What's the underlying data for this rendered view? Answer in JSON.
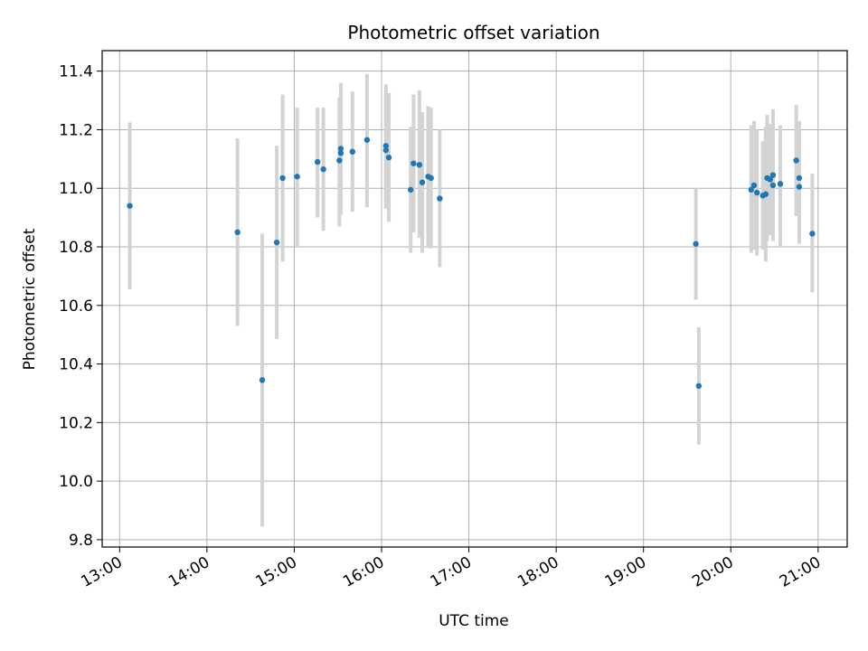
{
  "chart_data": {
    "type": "scatter",
    "title": "Photometric offset variation",
    "xlabel": "UTC time",
    "ylabel": "Photometric offset",
    "xlim": [
      "12:48",
      "21:20"
    ],
    "ylim": [
      9.775,
      11.47
    ],
    "grid": true,
    "xticks": [
      "13:00",
      "14:00",
      "15:00",
      "16:00",
      "17:00",
      "18:00",
      "19:00",
      "20:00",
      "21:00"
    ],
    "yticks": [
      9.8,
      10.0,
      10.2,
      10.4,
      10.6,
      10.8,
      11.0,
      11.2,
      11.4
    ],
    "yticklabels": [
      "9.8",
      "10.0",
      "10.2",
      "10.4",
      "10.6",
      "10.8",
      "11.0",
      "11.2",
      "11.4"
    ],
    "colors": {
      "point": "#1f77b4",
      "errorbar": "#d3d3d3",
      "grid": "#b0b0b0"
    },
    "points": [
      {
        "t": "13:07",
        "y": 10.94,
        "lo": 10.655,
        "hi": 11.225
      },
      {
        "t": "14:21",
        "y": 10.85,
        "lo": 10.53,
        "hi": 11.17
      },
      {
        "t": "14:38",
        "y": 10.345,
        "lo": 9.845,
        "hi": 10.845
      },
      {
        "t": "14:48",
        "y": 10.815,
        "lo": 10.485,
        "hi": 11.145
      },
      {
        "t": "14:52",
        "y": 11.035,
        "lo": 10.75,
        "hi": 11.32
      },
      {
        "t": "15:02",
        "y": 11.04,
        "lo": 10.8,
        "hi": 11.275
      },
      {
        "t": "15:16",
        "y": 11.09,
        "lo": 10.9,
        "hi": 11.275
      },
      {
        "t": "15:20",
        "y": 11.065,
        "lo": 10.855,
        "hi": 11.275
      },
      {
        "t": "15:31",
        "y": 11.095,
        "lo": 10.87,
        "hi": 11.31
      },
      {
        "t": "15:32",
        "y": 11.135,
        "lo": 10.91,
        "hi": 11.36
      },
      {
        "t": "15:32",
        "y": 11.12,
        "lo": 10.96,
        "hi": 11.28
      },
      {
        "t": "15:40",
        "y": 11.125,
        "lo": 10.92,
        "hi": 11.33
      },
      {
        "t": "15:50",
        "y": 11.165,
        "lo": 10.935,
        "hi": 11.39
      },
      {
        "t": "16:03",
        "y": 11.145,
        "lo": 10.935,
        "hi": 11.355
      },
      {
        "t": "16:03",
        "y": 11.13,
        "lo": 10.93,
        "hi": 11.33
      },
      {
        "t": "16:05",
        "y": 11.105,
        "lo": 10.885,
        "hi": 11.325
      },
      {
        "t": "16:20",
        "y": 10.995,
        "lo": 10.78,
        "hi": 11.21
      },
      {
        "t": "16:22",
        "y": 11.085,
        "lo": 10.85,
        "hi": 11.32
      },
      {
        "t": "16:26",
        "y": 11.08,
        "lo": 10.83,
        "hi": 11.335
      },
      {
        "t": "16:28",
        "y": 11.02,
        "lo": 10.78,
        "hi": 11.26
      },
      {
        "t": "16:32",
        "y": 11.04,
        "lo": 10.8,
        "hi": 11.28
      },
      {
        "t": "16:34",
        "y": 11.035,
        "lo": 10.795,
        "hi": 11.275
      },
      {
        "t": "16:40",
        "y": 10.965,
        "lo": 10.73,
        "hi": 11.2
      },
      {
        "t": "19:36",
        "y": 10.81,
        "lo": 10.62,
        "hi": 11.0
      },
      {
        "t": "19:38",
        "y": 10.325,
        "lo": 10.125,
        "hi": 10.525
      },
      {
        "t": "20:14",
        "y": 10.995,
        "lo": 10.78,
        "hi": 11.215
      },
      {
        "t": "20:16",
        "y": 11.01,
        "lo": 10.79,
        "hi": 11.23
      },
      {
        "t": "20:18",
        "y": 10.985,
        "lo": 10.77,
        "hi": 11.2
      },
      {
        "t": "20:22",
        "y": 10.975,
        "lo": 10.79,
        "hi": 11.16
      },
      {
        "t": "20:24",
        "y": 10.98,
        "lo": 10.75,
        "hi": 11.21
      },
      {
        "t": "20:25",
        "y": 11.035,
        "lo": 10.82,
        "hi": 11.25
      },
      {
        "t": "20:27",
        "y": 11.03,
        "lo": 10.84,
        "hi": 11.22
      },
      {
        "t": "20:29",
        "y": 11.045,
        "lo": 10.82,
        "hi": 11.27
      },
      {
        "t": "20:29",
        "y": 11.01,
        "lo": 10.84,
        "hi": 11.18
      },
      {
        "t": "20:34",
        "y": 11.015,
        "lo": 10.8,
        "hi": 11.215
      },
      {
        "t": "20:45",
        "y": 11.095,
        "lo": 10.905,
        "hi": 11.285
      },
      {
        "t": "20:47",
        "y": 11.035,
        "lo": 10.84,
        "hi": 11.23
      },
      {
        "t": "20:47",
        "y": 11.005,
        "lo": 10.81,
        "hi": 11.2
      },
      {
        "t": "20:56",
        "y": 10.845,
        "lo": 10.645,
        "hi": 11.05
      }
    ]
  }
}
